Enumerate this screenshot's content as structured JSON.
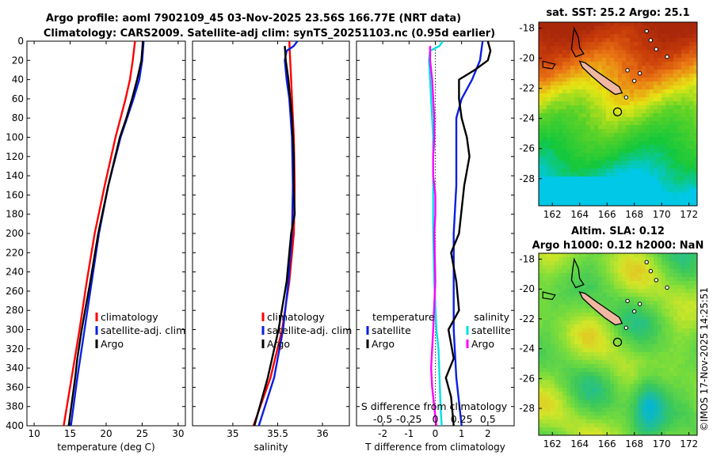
{
  "title": {
    "line1": "Argo profile: aoml 7902109_45 03-Nov-2025 23.56S 166.77E (NRT data)",
    "line2": "Climatology: CARS2009. Satellite-adj clim: synTS_20251103.nc (0.95d earlier)"
  },
  "side_label": "©IMOS 17-Nov-2025 14:25:51",
  "depth_axis": {
    "ticks": [
      0,
      20,
      40,
      60,
      80,
      100,
      120,
      140,
      160,
      180,
      200,
      220,
      240,
      260,
      280,
      300,
      320,
      340,
      360,
      380,
      400
    ],
    "range": [
      0,
      400
    ]
  },
  "colors": {
    "climatology": "#ff0000",
    "satellite": "#0a1ee6",
    "argo": "#000000",
    "sat_salinity": "#00e0e0",
    "argo_salinity": "#ff00ff"
  },
  "chart_data": [
    {
      "type": "line",
      "name": "temperature",
      "xlabel": "temperature (deg C)",
      "xlim": [
        9,
        31
      ],
      "xticks": [
        10,
        15,
        20,
        25,
        30
      ],
      "ylim": [
        0,
        400
      ],
      "legend": [
        "climatology",
        "satellite-adj. clim",
        "Argo"
      ],
      "series": [
        {
          "name": "climatology",
          "depth": [
            0,
            20,
            40,
            60,
            80,
            100,
            150,
            200,
            250,
            300,
            350,
            400
          ],
          "values": [
            24.0,
            23.7,
            23.3,
            22.7,
            22.0,
            21.3,
            19.8,
            18.4,
            17.3,
            16.3,
            15.2,
            14.1
          ]
        },
        {
          "name": "satellite-adj. clim",
          "depth": [
            0,
            20,
            40,
            60,
            80,
            100,
            150,
            200,
            250,
            300,
            350,
            400
          ],
          "values": [
            25.2,
            25.0,
            24.6,
            23.8,
            22.9,
            22.0,
            20.3,
            19.0,
            18.0,
            17.0,
            16.0,
            15.1
          ]
        },
        {
          "name": "Argo",
          "depth": [
            0,
            20,
            40,
            60,
            80,
            100,
            150,
            200,
            250,
            300,
            330,
            350,
            400
          ],
          "values": [
            25.1,
            24.9,
            24.3,
            23.6,
            22.8,
            21.9,
            20.3,
            18.9,
            17.8,
            16.6,
            16.0,
            15.7,
            14.8
          ]
        }
      ]
    },
    {
      "type": "line",
      "name": "salinity",
      "xlabel": "salinity",
      "xlim": [
        34.55,
        36.3
      ],
      "xticks": [
        35,
        35.5,
        36
      ],
      "ylim": [
        0,
        400
      ],
      "legend": [
        "climatology",
        "satellite-adj. clim",
        "Argo"
      ],
      "series": [
        {
          "name": "climatology",
          "depth": [
            0,
            20,
            40,
            60,
            80,
            100,
            150,
            200,
            250,
            300,
            350,
            400
          ],
          "values": [
            35.63,
            35.64,
            35.65,
            35.66,
            35.67,
            35.68,
            35.69,
            35.68,
            35.63,
            35.55,
            35.42,
            35.23
          ]
        },
        {
          "name": "satellite-adj. clim",
          "depth": [
            0,
            5,
            10,
            20,
            40,
            60,
            100,
            150,
            200,
            250,
            300,
            350,
            400
          ],
          "values": [
            35.72,
            35.68,
            35.6,
            35.58,
            35.6,
            35.63,
            35.66,
            35.67,
            35.66,
            35.62,
            35.56,
            35.46,
            35.29
          ]
        },
        {
          "name": "Argo",
          "depth": [
            5,
            20,
            40,
            60,
            80,
            100,
            120,
            150,
            180,
            200,
            250,
            300,
            350,
            400
          ],
          "values": [
            35.58,
            35.59,
            35.62,
            35.64,
            35.66,
            35.67,
            35.68,
            35.68,
            35.69,
            35.65,
            35.6,
            35.51,
            35.39,
            35.24
          ]
        }
      ]
    },
    {
      "type": "line",
      "name": "difference from climatology",
      "xlabel": "T difference from climatology",
      "xlabel_top": "S difference from climatology",
      "xlim": [
        -3,
        3
      ],
      "xticks": [
        -2,
        -1,
        0,
        1,
        2
      ],
      "xticks_top": [
        -0.5,
        -0.25,
        0,
        0.25,
        0.5
      ],
      "xticks_top_labels": [
        "-0.5",
        "-0.25",
        "0",
        "0.25",
        "0.5"
      ],
      "ylim": [
        0,
        400
      ],
      "legend_left_title": "temperature",
      "legend_left": [
        "satellite",
        "Argo"
      ],
      "legend_right_title": "salinity",
      "legend_right": [
        "satellite",
        "Argo"
      ],
      "series": [
        {
          "name": "temperature satellite",
          "axis": "T",
          "depth": [
            0,
            20,
            40,
            60,
            80,
            100,
            150,
            200,
            250,
            300,
            350,
            400
          ],
          "values": [
            1.8,
            1.7,
            1.4,
            1.0,
            0.8,
            0.8,
            0.8,
            0.7,
            0.7,
            0.7,
            0.8,
            1.0
          ]
        },
        {
          "name": "temperature Argo",
          "axis": "T",
          "depth": [
            0,
            10,
            20,
            30,
            40,
            60,
            80,
            100,
            120,
            150,
            200,
            220,
            250,
            280,
            300,
            330,
            350,
            370,
            400
          ],
          "values": [
            2.0,
            2.1,
            2.0,
            1.5,
            0.9,
            0.9,
            1.0,
            1.2,
            1.3,
            1.1,
            0.9,
            0.6,
            0.8,
            0.9,
            0.5,
            0.7,
            0.4,
            0.6,
            0.7
          ]
        },
        {
          "name": "salinity satellite",
          "axis": "S",
          "depth": [
            0,
            5,
            10,
            20,
            40,
            60,
            80,
            100,
            150,
            200,
            250,
            300,
            320,
            350,
            380,
            400
          ],
          "values": [
            0.07,
            0.04,
            -0.05,
            -0.06,
            -0.05,
            -0.04,
            -0.03,
            -0.02,
            -0.02,
            -0.02,
            -0.01,
            0.01,
            0.03,
            0.04,
            0.05,
            0.06
          ]
        },
        {
          "name": "salinity Argo",
          "axis": "S",
          "depth": [
            5,
            20,
            40,
            60,
            80,
            100,
            120,
            140,
            160,
            180,
            200,
            250,
            300,
            340,
            360,
            400
          ],
          "values": [
            -0.05,
            -0.05,
            -0.03,
            -0.02,
            -0.01,
            -0.01,
            -0.02,
            -0.02,
            0.0,
            0.0,
            -0.01,
            0.0,
            -0.02,
            -0.04,
            -0.03,
            0.01
          ]
        }
      ]
    }
  ],
  "maps": [
    {
      "title_lines": [
        "sat. SST: 25.2  Argo: 25.1"
      ],
      "kind": "sst",
      "lon_ticks": [
        162,
        164,
        166,
        168,
        170,
        172
      ],
      "lat_ticks": [
        -18,
        -20,
        -22,
        -24,
        -26,
        -28
      ],
      "lon_range": [
        161.0,
        172.6
      ],
      "lat_range": [
        -29.8,
        -17.6
      ],
      "profile_location": {
        "lon": 166.77,
        "lat": -23.56
      }
    },
    {
      "title_lines": [
        "Altim. SLA: 0.12",
        "Argo h1000: 0.12 h2000: NaN"
      ],
      "kind": "sla",
      "lon_ticks": [
        162,
        164,
        166,
        168,
        170,
        172
      ],
      "lat_ticks": [
        -18,
        -20,
        -22,
        -24,
        -26,
        -28
      ],
      "lon_range": [
        161.0,
        172.6
      ],
      "lat_range": [
        -29.8,
        -17.6
      ],
      "profile_location": {
        "lon": 166.77,
        "lat": -23.56
      }
    }
  ]
}
